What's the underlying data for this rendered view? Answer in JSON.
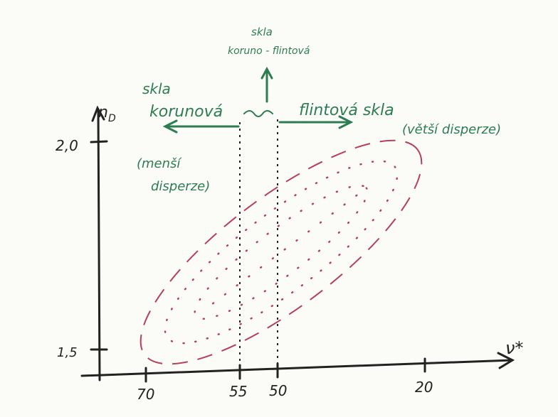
{
  "axes": {
    "y_label": "n",
    "y_label_sub": "D",
    "x_label": "ν*",
    "y_ticks": [
      "2,0",
      "1,5"
    ],
    "x_ticks": [
      "70",
      "55",
      "50",
      "20"
    ]
  },
  "labels": {
    "crown_flint_1": "skla",
    "crown_flint_2": "koruno - flintová",
    "crown_1": "skla",
    "crown_2": "korunová",
    "flint": "flintová skla",
    "flint_note": "(větší disperze)",
    "crown_note_1": "(menší",
    "crown_note_2": "disperze)"
  }
}
